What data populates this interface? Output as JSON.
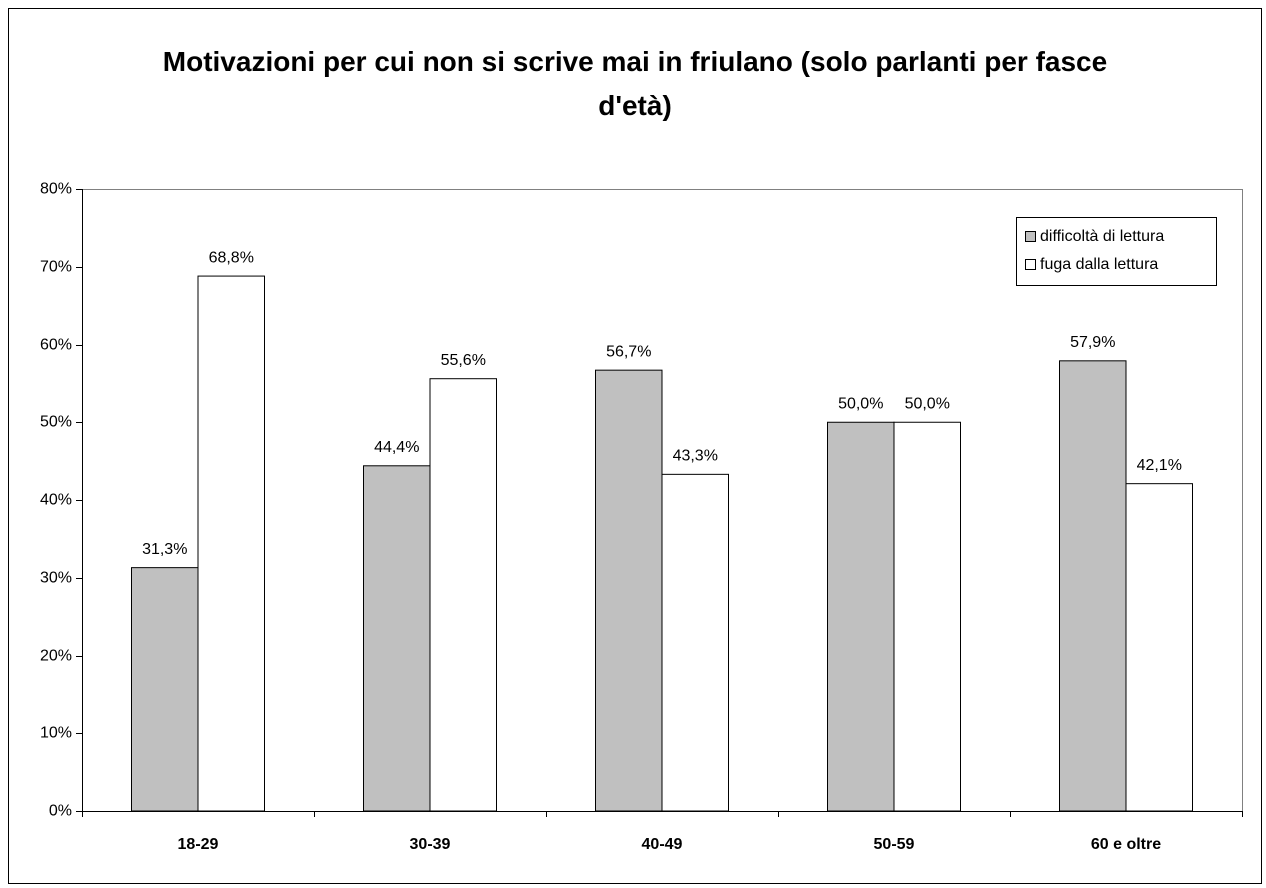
{
  "chart_data": {
    "type": "bar",
    "title": "Motivazioni per cui non si scrive mai in friulano (solo parlanti per fasce d'età)",
    "categories": [
      "18-29",
      "30-39",
      "40-49",
      "50-59",
      "60 e oltre"
    ],
    "series": [
      {
        "name": "difficoltà di lettura",
        "color": "#c0c0c0",
        "values": [
          31.3,
          44.4,
          56.7,
          50.0,
          57.9
        ],
        "value_labels": [
          "31,3%",
          "44,4%",
          "56,7%",
          "50,0%",
          "57,9%"
        ]
      },
      {
        "name": "fuga dalla lettura",
        "color": "#ffffff",
        "values": [
          68.8,
          55.6,
          43.3,
          50.0,
          42.1
        ],
        "value_labels": [
          "68,8%",
          "55,6%",
          "43,3%",
          "50,0%",
          "42,1%"
        ]
      }
    ],
    "ylim": [
      0,
      80
    ],
    "yticks": [
      {
        "value": 0,
        "label": "0%"
      },
      {
        "value": 10,
        "label": "10%"
      },
      {
        "value": 20,
        "label": "20%"
      },
      {
        "value": 30,
        "label": "30%"
      },
      {
        "value": 40,
        "label": "40%"
      },
      {
        "value": 50,
        "label": "50%"
      },
      {
        "value": 60,
        "label": "60%"
      },
      {
        "value": 70,
        "label": "70%"
      },
      {
        "value": 80,
        "label": "80%"
      }
    ],
    "legend": "top-right"
  }
}
